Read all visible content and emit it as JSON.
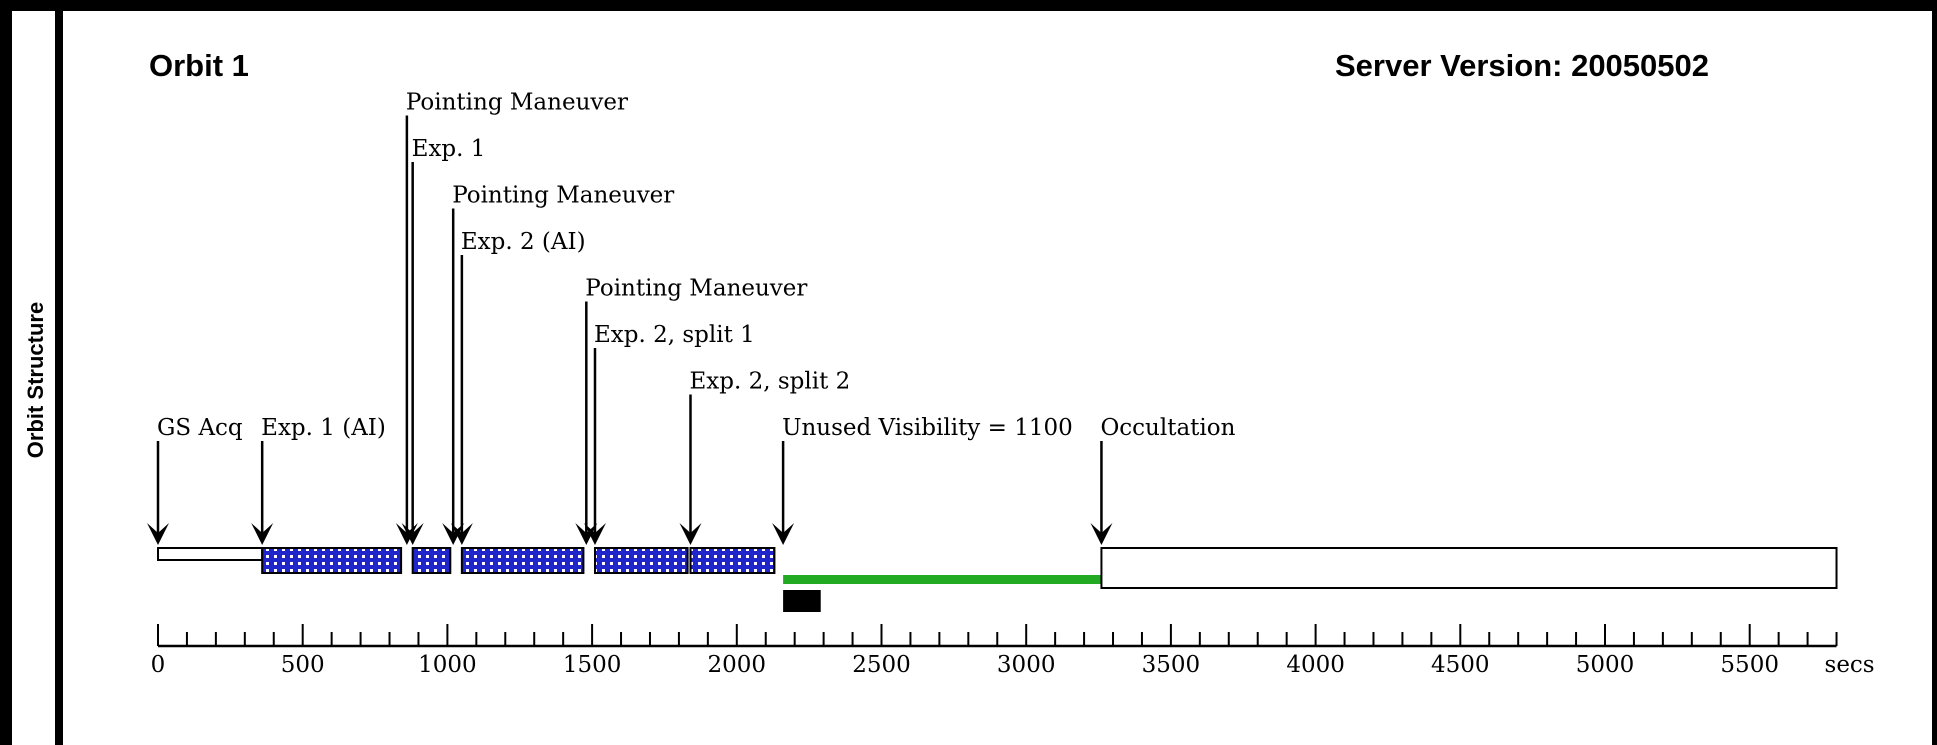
{
  "side_label": "Orbit Structure",
  "orbit_title": "Orbit 1",
  "server_version": "Server Version: 20050502",
  "colors": {
    "border": "#000000",
    "exposure_fill": "#1f25c8",
    "unused_visibility": "#22aa22",
    "occultation_fill": "#ffffff"
  },
  "chart_data": {
    "type": "timeline",
    "x_unit": "secs",
    "x_ticks": [
      0,
      500,
      1000,
      1500,
      2000,
      2500,
      3000,
      3500,
      4000,
      4500,
      5000,
      5500
    ],
    "x_max": 5800,
    "events": [
      {
        "label": "GS Acq",
        "time": 0,
        "tier": 0
      },
      {
        "label": "Exp. 1 (AI)",
        "time": 360,
        "tier": 0
      },
      {
        "label": "Pointing Maneuver",
        "time": 860,
        "tier": 7
      },
      {
        "label": "Exp. 1",
        "time": 880,
        "tier": 6
      },
      {
        "label": "Pointing Maneuver",
        "time": 1020,
        "tier": 5
      },
      {
        "label": "Exp. 2 (AI)",
        "time": 1050,
        "tier": 4
      },
      {
        "label": "Pointing Maneuver",
        "time": 1480,
        "tier": 3
      },
      {
        "label": "Exp. 2, split 1",
        "time": 1510,
        "tier": 2
      },
      {
        "label": "Exp. 2, split 2",
        "time": 1840,
        "tier": 1
      },
      {
        "label": "Unused Visibility = 1100",
        "time": 2160,
        "tier": 0
      },
      {
        "label": "Occultation",
        "time": 3260,
        "tier": 0
      }
    ],
    "segments": [
      {
        "name": "GS Acq",
        "start": 0,
        "end": 360,
        "style": "thin-open"
      },
      {
        "name": "Exp. 1 (AI)",
        "start": 360,
        "end": 840,
        "style": "dotted"
      },
      {
        "name": "Exp. 1",
        "start": 880,
        "end": 1010,
        "style": "dotted"
      },
      {
        "name": "Exp. 2 (AI)",
        "start": 1050,
        "end": 1470,
        "style": "dotted"
      },
      {
        "name": "Exp. 2, split 1",
        "start": 1510,
        "end": 1830,
        "style": "dotted"
      },
      {
        "name": "Exp. 2, split 2",
        "start": 1840,
        "end": 2130,
        "style": "dotted"
      },
      {
        "name": "Unused Visibility",
        "start": 2160,
        "end": 3260,
        "style": "green-line"
      },
      {
        "name": "Occultation",
        "start": 3260,
        "end": 5800,
        "style": "open"
      }
    ],
    "marker": {
      "start": 2160,
      "end": 2290
    }
  }
}
